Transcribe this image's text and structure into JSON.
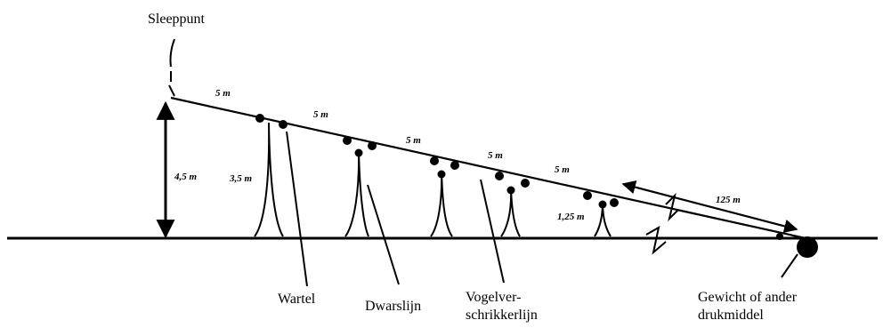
{
  "labels": {
    "tow_point": "Sleeppunt",
    "swivel": "Wartel",
    "dropper": "Dwarslijn",
    "streamer_line_1": "Vogelver-",
    "streamer_line_2": "schrikkerlijn",
    "weight_line_1": "Gewicht of ander",
    "weight_line_2": "drukmiddel"
  },
  "measurements": {
    "seg1": "5 m",
    "seg2": "5 m",
    "seg3": "5 m",
    "seg4": "5 m",
    "seg5": "5 m",
    "total": "125 m",
    "height_tow": "4,5 m",
    "dropper_long": "3,5 m",
    "dropper_short": "1,25 m"
  },
  "colors": {
    "ink": "#000000",
    "background": "#ffffff"
  }
}
